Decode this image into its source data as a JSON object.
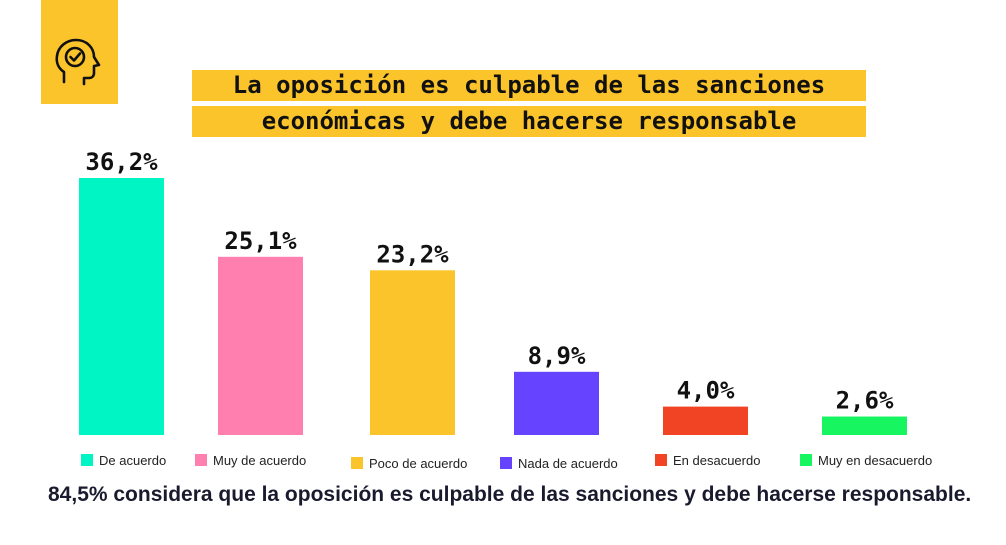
{
  "title_lines": [
    "La oposición es culpable de las sanciones",
    "económicas y debe hacerse responsable"
  ],
  "footer_text": "84,5% considera que la oposición es culpable de las sanciones y debe hacerse responsable.",
  "icon": "head-with-check-icon",
  "accent_color": "#FBC42A",
  "chart_data": {
    "type": "bar",
    "title": "La oposición es culpable de las sanciones económicas y debe hacerse responsable",
    "categories": [
      "De acuerdo",
      "Muy de acuerdo",
      "Poco de acuerdo",
      "Nada de acuerdo",
      "En desacuerdo",
      "Muy en desacuerdo"
    ],
    "values": [
      36.2,
      25.1,
      23.2,
      8.9,
      4.0,
      2.6
    ],
    "value_labels": [
      "36,2%",
      "25,1%",
      "23,2%",
      "8,9%",
      "4,0%",
      "2,6%"
    ],
    "colors": [
      "#00F5C4",
      "#FF7FAE",
      "#FBC42A",
      "#6644FF",
      "#F04424",
      "#17F560"
    ],
    "xlabel": "",
    "ylabel": "",
    "ylim": [
      0,
      36.2
    ],
    "grid": false,
    "legend": "bottom"
  }
}
